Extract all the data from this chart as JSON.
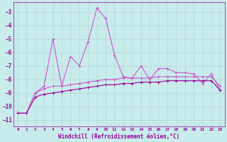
{
  "xlabel": "Windchill (Refroidissement éolien,°C)",
  "bg_color": "#c8ecec",
  "grid_color": "#b8d8d8",
  "line_spiky_color": "#990099",
  "line_smooth_color": "#990099",
  "line_mid_color": "#cc55cc",
  "x": [
    0,
    1,
    2,
    3,
    4,
    5,
    6,
    7,
    8,
    9,
    10,
    11,
    12,
    13,
    14,
    15,
    16,
    17,
    18,
    19,
    20,
    21,
    22,
    23
  ],
  "y_spiky": [
    -10.5,
    -10.5,
    -9.0,
    -8.5,
    -5.0,
    -8.5,
    -6.3,
    -7.0,
    -5.2,
    -2.7,
    -3.5,
    -6.2,
    -7.8,
    -7.9,
    -7.0,
    -8.0,
    -7.2,
    -7.2,
    -7.5,
    -7.5,
    -7.6,
    -8.3,
    -7.6,
    -8.8
  ],
  "y_smooth": [
    -10.5,
    -10.5,
    -9.3,
    -9.1,
    -9.0,
    -8.9,
    -8.8,
    -8.7,
    -8.6,
    -8.5,
    -8.4,
    -8.4,
    -8.3,
    -8.3,
    -8.2,
    -8.2,
    -8.2,
    -8.1,
    -8.1,
    -8.1,
    -8.1,
    -8.1,
    -8.1,
    -8.8
  ],
  "y_mid": [
    -10.5,
    -10.5,
    -9.0,
    -8.7,
    -8.5,
    -8.5,
    -8.4,
    -8.3,
    -8.2,
    -8.1,
    -8.0,
    -8.0,
    -7.9,
    -7.9,
    -7.9,
    -7.9,
    -7.8,
    -7.8,
    -7.8,
    -7.8,
    -7.8,
    -7.8,
    -7.8,
    -8.5
  ],
  "ylim": [
    -11.5,
    -2.3
  ],
  "xlim": [
    -0.5,
    23.5
  ],
  "yticks": [
    -11,
    -10,
    -9,
    -8,
    -7,
    -6,
    -5,
    -4,
    -3
  ],
  "xticks": [
    0,
    1,
    2,
    3,
    4,
    5,
    6,
    7,
    8,
    9,
    10,
    11,
    12,
    13,
    14,
    15,
    16,
    17,
    18,
    19,
    20,
    21,
    22,
    23
  ]
}
